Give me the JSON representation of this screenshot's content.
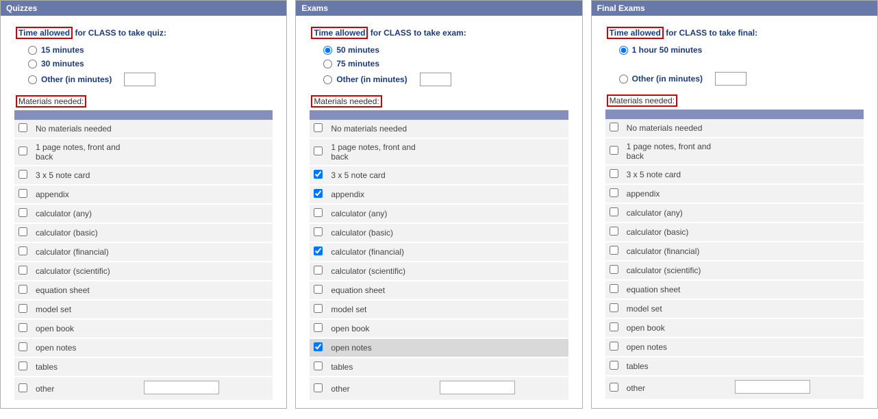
{
  "colors": {
    "header_bg": "#6878a7",
    "header_text": "#ffffff",
    "link_text": "#1a3b7a",
    "highlight_border": "#d40000",
    "table_header_bg": "#8490bb",
    "row_bg": "#f2f2f2",
    "row_selected_bg": "#d9d9d9",
    "panel_border": "#b0b0b0"
  },
  "panels": [
    {
      "key": "quizzes",
      "title": "Quizzes",
      "time_label_prefix": "Time allowed",
      "time_label_suffix": " for CLASS to take quiz:",
      "radios": [
        {
          "label": "15 minutes",
          "checked": false,
          "has_input": false
        },
        {
          "label": "30 minutes",
          "checked": false,
          "has_input": false
        },
        {
          "label": "Other (in minutes)",
          "checked": false,
          "has_input": true,
          "input_value": ""
        }
      ],
      "materials_label": "Materials needed:",
      "materials": [
        {
          "label": "No materials needed",
          "checked": false
        },
        {
          "label": "1 page notes, front and back",
          "checked": false
        },
        {
          "label": "3 x 5 note card",
          "checked": false
        },
        {
          "label": "appendix",
          "checked": false
        },
        {
          "label": "calculator (any)",
          "checked": false
        },
        {
          "label": "calculator (basic)",
          "checked": false
        },
        {
          "label": "calculator (financial)",
          "checked": false
        },
        {
          "label": "calculator (scientific)",
          "checked": false
        },
        {
          "label": "equation sheet",
          "checked": false
        },
        {
          "label": "model set",
          "checked": false
        },
        {
          "label": "open book",
          "checked": false
        },
        {
          "label": "open notes",
          "checked": false
        },
        {
          "label": "tables",
          "checked": false
        },
        {
          "label": "other",
          "checked": false,
          "has_textarea": true,
          "textarea_value": ""
        }
      ]
    },
    {
      "key": "exams",
      "title": "Exams",
      "time_label_prefix": "Time allowed",
      "time_label_suffix": " for CLASS to take exam:",
      "radios": [
        {
          "label": "50 minutes",
          "checked": true,
          "has_input": false
        },
        {
          "label": "75 minutes",
          "checked": false,
          "has_input": false
        },
        {
          "label": "Other (in minutes)",
          "checked": false,
          "has_input": true,
          "input_value": ""
        }
      ],
      "materials_label": "Materials needed:",
      "materials": [
        {
          "label": "No materials needed",
          "checked": false
        },
        {
          "label": "1 page notes, front and back",
          "checked": false
        },
        {
          "label": "3 x 5 note card",
          "checked": true
        },
        {
          "label": "appendix",
          "checked": true
        },
        {
          "label": "calculator (any)",
          "checked": false
        },
        {
          "label": "calculator (basic)",
          "checked": false
        },
        {
          "label": "calculator (financial)",
          "checked": true
        },
        {
          "label": "calculator (scientific)",
          "checked": false
        },
        {
          "label": "equation sheet",
          "checked": false
        },
        {
          "label": "model set",
          "checked": false
        },
        {
          "label": "open book",
          "checked": false
        },
        {
          "label": "open notes",
          "checked": true,
          "selected_row": true
        },
        {
          "label": "tables",
          "checked": false
        },
        {
          "label": "other",
          "checked": false,
          "has_textarea": true,
          "textarea_value": ""
        }
      ]
    },
    {
      "key": "final",
      "title": "Final Exams",
      "time_label_prefix": "Time allowed",
      "time_label_suffix": " for CLASS to take final:",
      "radios": [
        {
          "label": "1 hour 50 minutes",
          "checked": true,
          "has_input": false
        },
        {
          "label": "",
          "checked": false,
          "has_input": false,
          "spacer": true
        },
        {
          "label": "Other (in minutes)",
          "checked": false,
          "has_input": true,
          "input_value": ""
        }
      ],
      "materials_label": "Materials needed:",
      "materials": [
        {
          "label": "No materials needed",
          "checked": false
        },
        {
          "label": "1 page notes, front and back",
          "checked": false
        },
        {
          "label": "3 x 5 note card",
          "checked": false
        },
        {
          "label": "appendix",
          "checked": false
        },
        {
          "label": "calculator (any)",
          "checked": false
        },
        {
          "label": "calculator (basic)",
          "checked": false
        },
        {
          "label": "calculator (financial)",
          "checked": false
        },
        {
          "label": "calculator (scientific)",
          "checked": false
        },
        {
          "label": "equation sheet",
          "checked": false
        },
        {
          "label": "model set",
          "checked": false
        },
        {
          "label": "open book",
          "checked": false
        },
        {
          "label": "open notes",
          "checked": false
        },
        {
          "label": "tables",
          "checked": false
        },
        {
          "label": "other",
          "checked": false,
          "has_textarea": true,
          "textarea_value": ""
        }
      ]
    }
  ]
}
